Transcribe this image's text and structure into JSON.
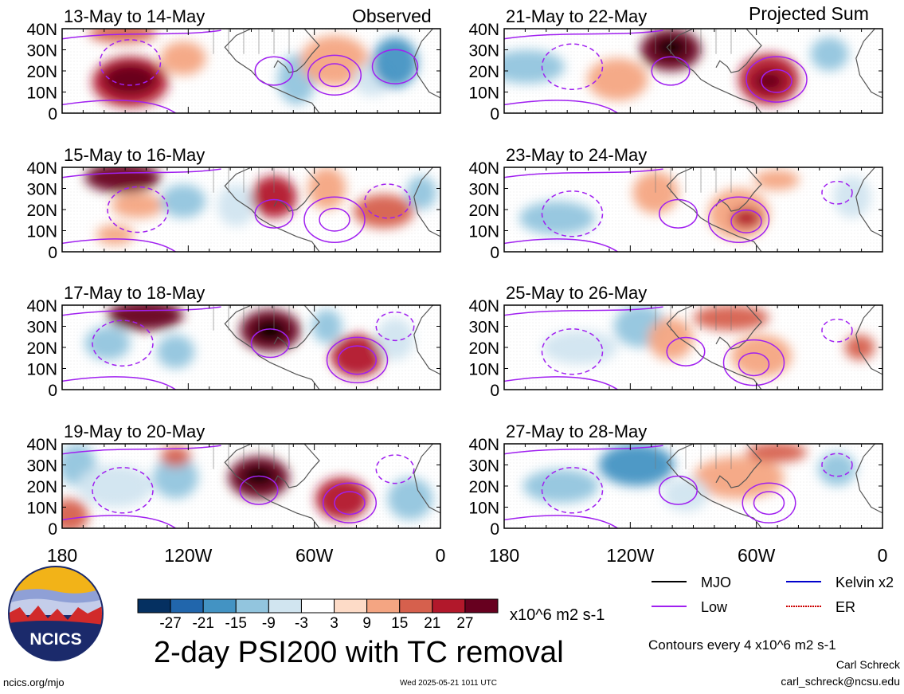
{
  "figure": {
    "title": "2-day PSI200 with TC removal",
    "observed_label": "Observed",
    "projected_label": "Projected Sum",
    "colorbar_unit": "x10^6 m2 s-1",
    "contour_note": "Contours every 4 x10^6 m2 s-1",
    "author": "Carl Schreck",
    "email": "carl_schreck@ncsu.edu",
    "footer_url": "ncics.org/mjo",
    "timestamp": "Wed 2025-05-21 1011 UTC",
    "logo_text": "NCICS"
  },
  "panels": [
    {
      "period": "13-May to 14-May",
      "column": "observed"
    },
    {
      "period": "15-May to 16-May",
      "column": "observed"
    },
    {
      "period": "17-May to 18-May",
      "column": "observed"
    },
    {
      "period": "19-May to 20-May",
      "column": "observed"
    },
    {
      "period": "21-May to 22-May",
      "column": "projected"
    },
    {
      "period": "23-May to 24-May",
      "column": "projected"
    },
    {
      "period": "25-May to 26-May",
      "column": "projected"
    },
    {
      "period": "27-May to 28-May",
      "column": "projected"
    }
  ],
  "lat_ticks": [
    "40N",
    "30N",
    "20N",
    "10N",
    "0"
  ],
  "lon_ticks": [
    "180",
    "120W",
    "60W",
    "0"
  ],
  "colorbar": {
    "tick_labels": [
      "-27",
      "-21",
      "-15",
      "-9",
      "-3",
      "3",
      "9",
      "15",
      "21",
      "27"
    ],
    "colors": [
      "#053061",
      "#2166ac",
      "#4393c3",
      "#92c5de",
      "#d1e5f0",
      "#ffffff",
      "#fddbc7",
      "#f4a582",
      "#d6604d",
      "#b2182b",
      "#67001f"
    ]
  },
  "legend": [
    {
      "label": "MJO",
      "color": "#000000",
      "style": "solid"
    },
    {
      "label": "Kelvin x2",
      "color": "#0000cc",
      "style": "solid"
    },
    {
      "label": "Low",
      "color": "#a020f0",
      "style": "solid"
    },
    {
      "label": "ER",
      "color": "#cc0000",
      "style": "dotted"
    }
  ]
}
